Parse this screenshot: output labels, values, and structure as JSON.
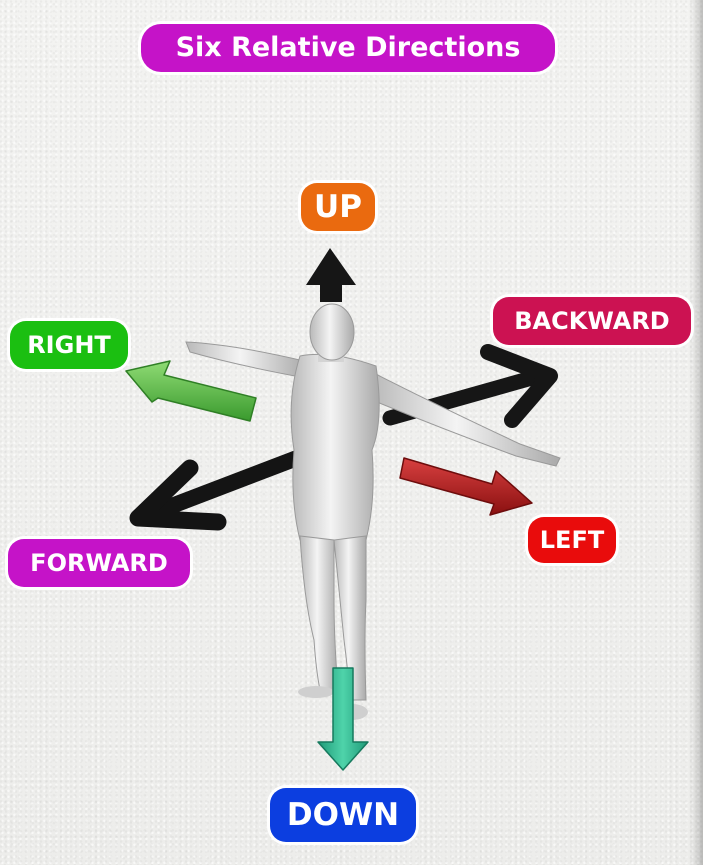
{
  "title": "Six Relative Directions",
  "labels": {
    "up": "UP",
    "backward": "BACKWARD",
    "right": "RIGHT",
    "forward": "FORWARD",
    "left": "LEFT",
    "down": "DOWN"
  },
  "colors": {
    "title_bg": "#c513c8",
    "up": "#ea6a0f",
    "backward": "#cc1252",
    "right": "#1bbf11",
    "forward": "#c513c8",
    "left": "#e90c0c",
    "down": "#0c3ee0",
    "arrow_black": "#161616",
    "arrow_green": "#5cc04a",
    "arrow_red": "#b91c1c",
    "arrow_teal": "#27b38a",
    "figure": "#d9d9d9"
  },
  "icons": [
    "human-figure",
    "arrow-up",
    "arrow-down",
    "arrow-right-direction",
    "arrow-left-direction",
    "arrow-forward",
    "arrow-backward"
  ]
}
